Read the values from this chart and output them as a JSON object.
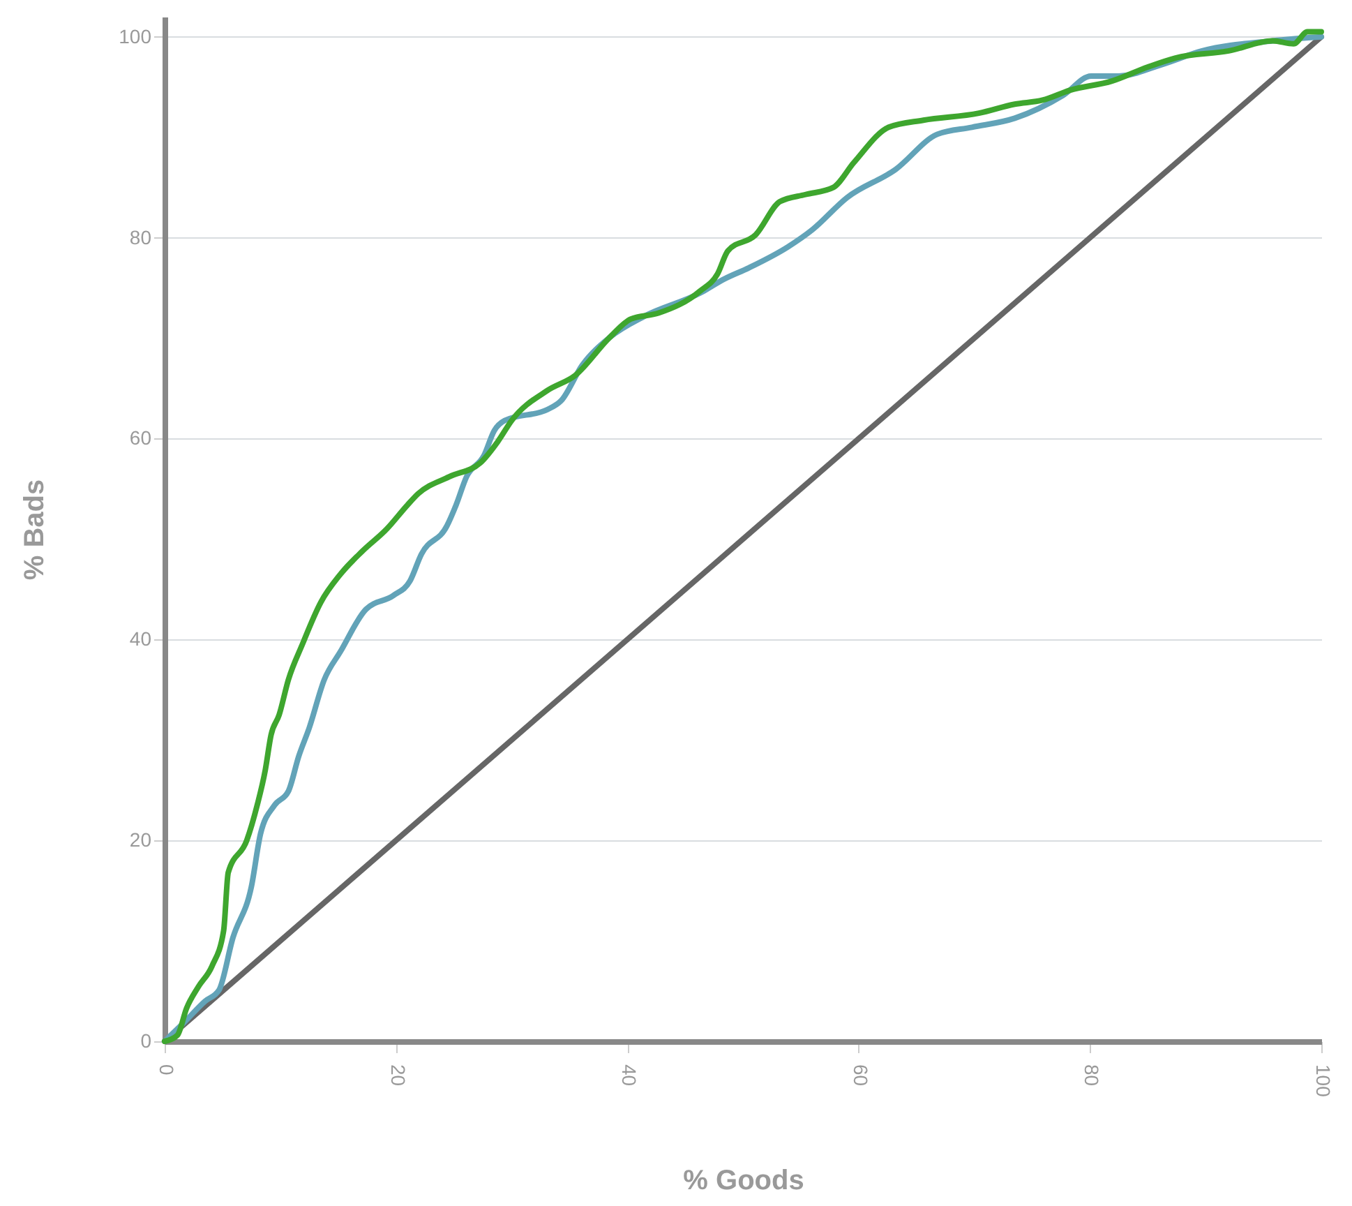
{
  "chart_data": {
    "type": "line",
    "xlabel": "% Goods",
    "ylabel": "% Bads",
    "xlim": [
      0,
      100
    ],
    "ylim": [
      0,
      102
    ],
    "xticks": [
      0,
      20,
      40,
      60,
      80,
      100
    ],
    "yticks": [
      0,
      20,
      40,
      60,
      80,
      100
    ],
    "grid": "y",
    "legend": false,
    "series": [
      {
        "color": "#666666",
        "x": [
          0,
          100
        ],
        "values": [
          0,
          100
        ]
      },
      {
        "color": "#62a3b8",
        "x": [
          0,
          1.7,
          3.5,
          4.7,
          5.9,
          7.5,
          8.3,
          9.5,
          10.7,
          11.6,
          12.5,
          13.8,
          15.2,
          17.4,
          19.8,
          21.2,
          22.2,
          24.4,
          25.2,
          26.1,
          27.6,
          28.5,
          29.4,
          33.1,
          34.3,
          36.1,
          38.5,
          41.5,
          46.3,
          48.4,
          50.5,
          53.9,
          56,
          59,
          63.2,
          66.8,
          69.8,
          73.5,
          77.7,
          80.1,
          82.5,
          86.1,
          89.7,
          95.8,
          100
        ],
        "values": [
          0,
          1.9,
          4,
          5.1,
          10.3,
          15.4,
          20.7,
          23.5,
          24.9,
          28.4,
          31.2,
          36,
          38.8,
          43,
          44.4,
          45.8,
          48.5,
          51.3,
          53.4,
          56.2,
          58.3,
          60.8,
          61.8,
          62.9,
          63.8,
          67.3,
          70.1,
          72.2,
          74.5,
          75.9,
          77,
          79.1,
          80.8,
          84,
          86.8,
          90.3,
          91,
          91.9,
          94.2,
          96.1,
          96.1,
          97.2,
          98.6,
          99.6,
          100
        ]
      },
      {
        "color": "#3ea62e",
        "x": [
          0,
          1.1,
          1.9,
          2.9,
          4.1,
          5.1,
          5.5,
          7.1,
          8,
          8.7,
          9.2,
          9.9,
          10.7,
          11.9,
          13.5,
          15.2,
          17.1,
          19.2,
          21,
          21.9,
          24.6,
          27.3,
          28.8,
          30,
          33.1,
          35.5,
          38.5,
          40.3,
          42.7,
          46.3,
          47.8,
          48.7,
          51.1,
          53.2,
          55.4,
          57.8,
          59.6,
          62.6,
          65.6,
          70.4,
          73.5,
          75.9,
          78.3,
          81.9,
          85,
          87.4,
          92,
          95.8,
          97.6,
          98.8,
          100
        ],
        "values": [
          0,
          0.6,
          3.3,
          5.4,
          7.5,
          11,
          16.8,
          20,
          23.5,
          27,
          30.5,
          32.5,
          36,
          39.5,
          43.7,
          46.5,
          48.8,
          51,
          53.4,
          54.5,
          56.2,
          57.6,
          59.7,
          61.8,
          64.8,
          66.3,
          70.1,
          71.9,
          72.5,
          74.7,
          76.4,
          78.7,
          80.3,
          83.6,
          84.3,
          85,
          87.5,
          91,
          91.7,
          92.4,
          93.3,
          93.7,
          94.7,
          95.6,
          97,
          97.9,
          98.6,
          99.6,
          99.3,
          100.5,
          100.5
        ]
      }
    ]
  }
}
